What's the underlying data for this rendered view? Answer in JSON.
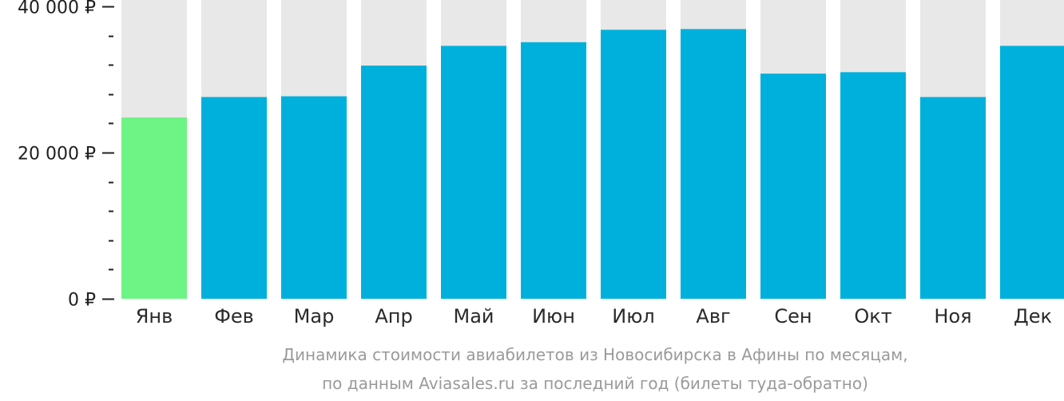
{
  "chart_data": {
    "type": "bar",
    "categories": [
      "Янв",
      "Фев",
      "Мар",
      "Апр",
      "Май",
      "Июн",
      "Июл",
      "Авг",
      "Сен",
      "Окт",
      "Ноя",
      "Дек"
    ],
    "values": [
      24800,
      27600,
      27700,
      31900,
      34600,
      35100,
      36800,
      36900,
      30800,
      31000,
      27600,
      34600
    ],
    "ylim": [
      0,
      40000
    ],
    "y_ticks": [
      {
        "value": 0,
        "label": "0 ₽"
      },
      {
        "value": 20000,
        "label": "20 000 ₽"
      },
      {
        "value": 40000,
        "label": "40 000 ₽"
      }
    ],
    "minor_tick_step": 4000,
    "highlight_index": 0,
    "colors": {
      "bar": "#00b0dc",
      "highlight": "#6ef484",
      "background_bar": "#e8e8e8",
      "axis": "#222222"
    },
    "caption_lines": [
      "Динамика стоимости авиабилетов из Новосибирска в Афины по месяцам,",
      "по данным Aviasales.ru за последний год (билеты туда-обратно)"
    ]
  }
}
